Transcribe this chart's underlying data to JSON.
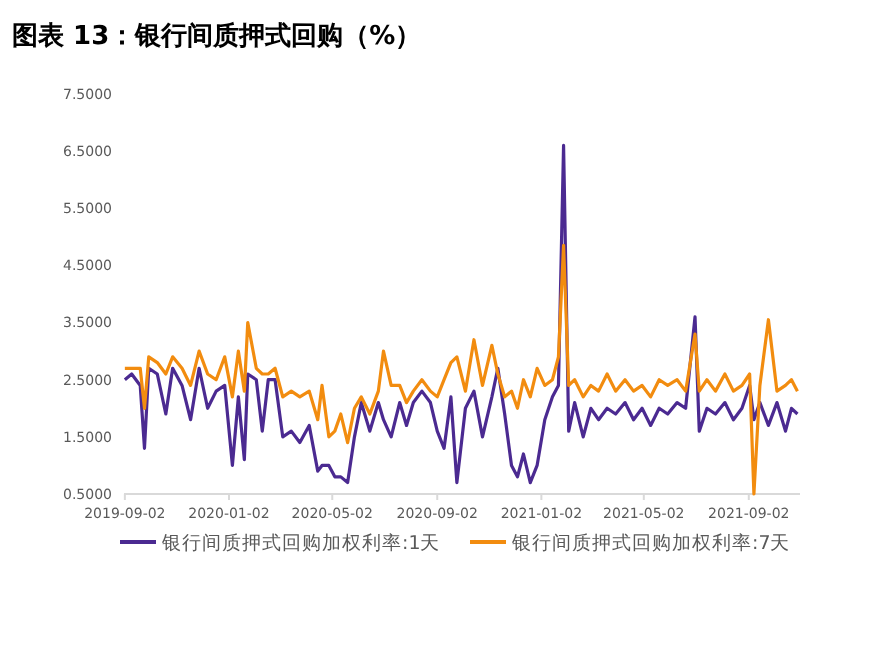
{
  "chart_data": {
    "type": "line",
    "title": "图表 13：银行间质押式回购（%）",
    "x": [
      "2019-09-02",
      "2019-09-10",
      "2019-09-20",
      "2019-09-25",
      "2019-09-30",
      "2019-10-10",
      "2019-10-20",
      "2019-10-28",
      "2019-11-08",
      "2019-11-18",
      "2019-11-28",
      "2019-12-08",
      "2019-12-18",
      "2019-12-28",
      "2020-01-06",
      "2020-01-13",
      "2020-01-20",
      "2020-01-24",
      "2020-02-03",
      "2020-02-10",
      "2020-02-17",
      "2020-02-25",
      "2020-03-05",
      "2020-03-15",
      "2020-03-25",
      "2020-04-05",
      "2020-04-15",
      "2020-04-20",
      "2020-04-28",
      "2020-05-05",
      "2020-05-12",
      "2020-05-20",
      "2020-05-28",
      "2020-06-05",
      "2020-06-15",
      "2020-06-25",
      "2020-07-01",
      "2020-07-10",
      "2020-07-20",
      "2020-07-28",
      "2020-08-05",
      "2020-08-15",
      "2020-08-25",
      "2020-09-02",
      "2020-09-10",
      "2020-09-18",
      "2020-09-25",
      "2020-10-05",
      "2020-10-15",
      "2020-10-25",
      "2020-11-05",
      "2020-11-12",
      "2020-11-20",
      "2020-11-28",
      "2020-12-05",
      "2020-12-12",
      "2020-12-20",
      "2020-12-28",
      "2021-01-06",
      "2021-01-15",
      "2021-01-22",
      "2021-01-28",
      "2021-02-03",
      "2021-02-10",
      "2021-02-20",
      "2021-03-01",
      "2021-03-10",
      "2021-03-20",
      "2021-03-30",
      "2021-04-10",
      "2021-04-20",
      "2021-04-30",
      "2021-05-10",
      "2021-05-20",
      "2021-05-30",
      "2021-06-10",
      "2021-06-20",
      "2021-07-01",
      "2021-07-06",
      "2021-07-15",
      "2021-07-25",
      "2021-08-05",
      "2021-08-15",
      "2021-08-25",
      "2021-09-03",
      "2021-09-08",
      "2021-09-15",
      "2021-09-25",
      "2021-10-05",
      "2021-10-15",
      "2021-10-22",
      "2021-10-29"
    ],
    "series": [
      {
        "name": "银行间质押式回购加权利率:1天",
        "color": "#4b2a91",
        "values": [
          2.5,
          2.6,
          2.4,
          1.3,
          2.7,
          2.6,
          1.9,
          2.7,
          2.4,
          1.8,
          2.7,
          2.0,
          2.3,
          2.4,
          1.0,
          2.2,
          1.1,
          2.6,
          2.5,
          1.6,
          2.5,
          2.5,
          1.5,
          1.6,
          1.4,
          1.7,
          0.9,
          1.0,
          1.0,
          0.8,
          0.8,
          0.7,
          1.5,
          2.1,
          1.6,
          2.1,
          1.8,
          1.5,
          2.1,
          1.7,
          2.1,
          2.3,
          2.1,
          1.6,
          1.3,
          2.2,
          0.7,
          2.0,
          2.3,
          1.5,
          2.2,
          2.7,
          1.9,
          1.0,
          0.8,
          1.2,
          0.7,
          1.0,
          1.8,
          2.2,
          2.4,
          6.6,
          1.6,
          2.1,
          1.5,
          2.0,
          1.8,
          2.0,
          1.9,
          2.1,
          1.8,
          2.0,
          1.7,
          2.0,
          1.9,
          2.1,
          2.0,
          3.6,
          1.6,
          2.0,
          1.9,
          2.1,
          1.8,
          2.0,
          2.4,
          1.8,
          2.1,
          1.7,
          2.1,
          1.6,
          2.0,
          1.9
        ]
      },
      {
        "name": "银行间质押式回购加权利率:7天",
        "color": "#f28c0f",
        "values": [
          2.7,
          2.7,
          2.7,
          2.0,
          2.9,
          2.8,
          2.6,
          2.9,
          2.7,
          2.4,
          3.0,
          2.6,
          2.5,
          2.9,
          2.2,
          3.0,
          2.3,
          3.5,
          2.7,
          2.6,
          2.6,
          2.7,
          2.2,
          2.3,
          2.2,
          2.3,
          1.8,
          2.4,
          1.5,
          1.6,
          1.9,
          1.4,
          2.0,
          2.2,
          1.9,
          2.3,
          3.0,
          2.4,
          2.4,
          2.1,
          2.3,
          2.5,
          2.3,
          2.2,
          2.5,
          2.8,
          2.9,
          2.3,
          3.2,
          2.4,
          3.1,
          2.6,
          2.2,
          2.3,
          2.0,
          2.5,
          2.2,
          2.7,
          2.4,
          2.5,
          2.9,
          4.85,
          2.4,
          2.5,
          2.2,
          2.4,
          2.3,
          2.6,
          2.3,
          2.5,
          2.3,
          2.4,
          2.2,
          2.5,
          2.4,
          2.5,
          2.3,
          3.3,
          2.3,
          2.5,
          2.3,
          2.6,
          2.3,
          2.4,
          2.6,
          0.5,
          2.4,
          3.55,
          2.3,
          2.4,
          2.5,
          2.3
        ]
      }
    ],
    "xlim": [
      "2019-09-01",
      "2021-11-01"
    ],
    "xticks": [
      {
        "value": "2019-09-02",
        "label": "2019-09-02"
      },
      {
        "value": "2020-01-02",
        "label": "2020-01-02"
      },
      {
        "value": "2020-05-02",
        "label": "2020-05-02"
      },
      {
        "value": "2020-09-02",
        "label": "2020-09-02"
      },
      {
        "value": "2021-01-02",
        "label": "2021-01-02"
      },
      {
        "value": "2021-05-02",
        "label": "2021-05-02"
      },
      {
        "value": "2021-09-02",
        "label": "2021-09-02"
      }
    ],
    "ylim": [
      0.5,
      7.5
    ],
    "yticks": [
      {
        "value": 0.5,
        "label": "0.5000"
      },
      {
        "value": 1.5,
        "label": "1.5000"
      },
      {
        "value": 2.5,
        "label": "2.5000"
      },
      {
        "value": 3.5,
        "label": "3.5000"
      },
      {
        "value": 4.5,
        "label": "4.5000"
      },
      {
        "value": 5.5,
        "label": "5.5000"
      },
      {
        "value": 6.5,
        "label": "6.5000"
      },
      {
        "value": 7.5,
        "label": "7.5000"
      }
    ],
    "grid": false,
    "legend": "bottom",
    "marker": "none",
    "line_style": "solid"
  }
}
